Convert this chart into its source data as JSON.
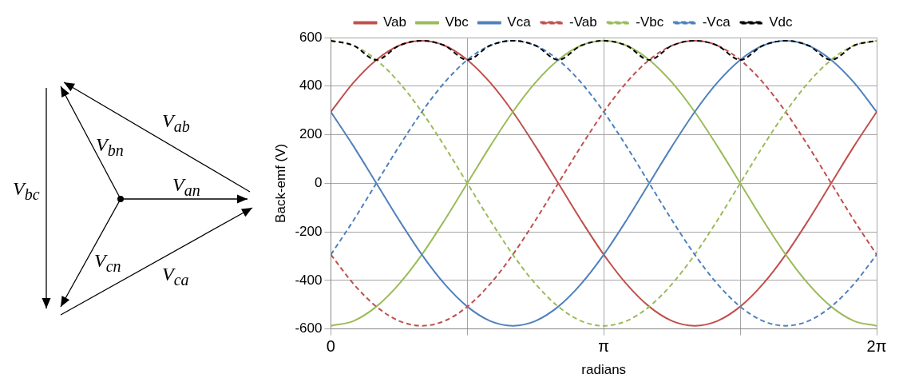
{
  "chart_data": [
    {
      "type": "other",
      "annotations": [
        "V$_{bc}$",
        "V$_{bn}$",
        "V$_{ab}$",
        "V$_{an}$",
        "V$_{cn}$",
        "V$_{ca}$"
      ]
    },
    {
      "type": "line",
      "xlabel": "radians",
      "ylabel": "Back-emf (V)",
      "legend": "top",
      "grid": true,
      "marker": "none",
      "x": [
        0,
        0.2618,
        0.5236,
        0.7854,
        1.0472,
        1.309,
        1.5708,
        1.8326,
        2.0944,
        2.3562,
        2.618,
        2.8798,
        3.1416,
        3.4034,
        3.6652,
        3.927,
        4.1888,
        4.4506,
        4.7124,
        4.9742,
        5.236,
        5.4978,
        5.7596,
        6.0214,
        6.2832
      ],
      "xlim": [
        0,
        6.2832
      ],
      "xticks": [
        {
          "value": 0,
          "label": "0"
        },
        {
          "value": 1.5708,
          "label": null
        },
        {
          "value": 3.1416,
          "label": "π"
        },
        {
          "value": 4.7124,
          "label": null
        },
        {
          "value": 6.2832,
          "label": "2π"
        }
      ],
      "ylim": [
        -600,
        600
      ],
      "yticks": [
        -600,
        -400,
        -200,
        0,
        200,
        400,
        600
      ],
      "series": [
        {
          "name": "Vab",
          "color": "#c0504d",
          "line_style": "solid",
          "values": [
            294,
            415,
            508,
            567,
            587,
            567,
            508,
            415,
            294,
            152,
            0,
            -152,
            -294,
            -415,
            -508,
            -567,
            -587,
            -567,
            -508,
            -415,
            -294,
            -152,
            0,
            152,
            294
          ]
        },
        {
          "name": "Vbc",
          "color": "#9bbb59",
          "line_style": "solid",
          "values": [
            -587,
            -567,
            -508,
            -415,
            -294,
            -152,
            0,
            152,
            294,
            415,
            508,
            567,
            587,
            567,
            508,
            415,
            294,
            152,
            0,
            -152,
            -294,
            -415,
            -508,
            -567,
            -587
          ]
        },
        {
          "name": "Vca",
          "color": "#4f81bd",
          "line_style": "solid",
          "values": [
            294,
            152,
            0,
            -152,
            -294,
            -415,
            -508,
            -567,
            -587,
            -567,
            -508,
            -415,
            -294,
            -152,
            0,
            152,
            294,
            415,
            508,
            567,
            587,
            567,
            508,
            415,
            294
          ]
        },
        {
          "name": "-Vab",
          "color": "#c0504d",
          "line_style": "dashed",
          "values": [
            -294,
            -415,
            -508,
            -567,
            -587,
            -567,
            -508,
            -415,
            -294,
            -152,
            0,
            152,
            294,
            415,
            508,
            567,
            587,
            567,
            508,
            415,
            294,
            152,
            0,
            -152,
            -294
          ]
        },
        {
          "name": "-Vbc",
          "color": "#9bbb59",
          "line_style": "dashed",
          "values": [
            587,
            567,
            508,
            415,
            294,
            152,
            0,
            -152,
            -294,
            -415,
            -508,
            -567,
            -587,
            -567,
            -508,
            -415,
            -294,
            -152,
            0,
            152,
            294,
            415,
            508,
            567,
            587
          ]
        },
        {
          "name": "-Vca",
          "color": "#4f81bd",
          "line_style": "dashed",
          "values": [
            -294,
            -152,
            0,
            152,
            294,
            415,
            508,
            567,
            587,
            567,
            508,
            415,
            294,
            152,
            0,
            -152,
            -294,
            -415,
            -508,
            -567,
            -587,
            -567,
            -508,
            -415,
            -294
          ]
        },
        {
          "name": "Vdc",
          "color": "#000000",
          "line_style": "dashed",
          "values": [
            587,
            567,
            508,
            567,
            587,
            567,
            508,
            567,
            587,
            567,
            508,
            567,
            587,
            567,
            508,
            567,
            587,
            567,
            508,
            567,
            587,
            567,
            508,
            567,
            587
          ]
        }
      ]
    }
  ]
}
